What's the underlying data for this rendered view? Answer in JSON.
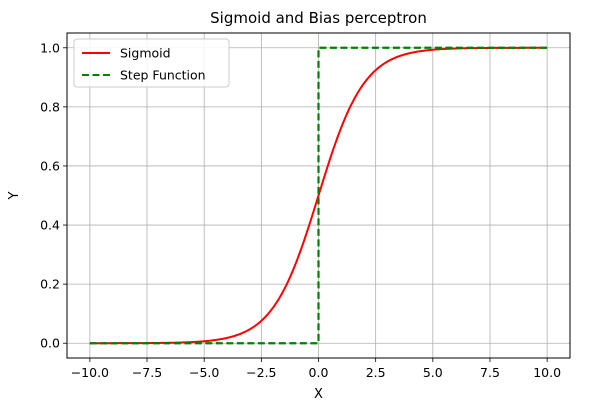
{
  "chart_data": {
    "type": "line",
    "title": "Sigmoid and Bias perceptron",
    "xlabel": "X",
    "ylabel": "Y",
    "xlim": [
      -11,
      11
    ],
    "ylim": [
      -0.05,
      1.05
    ],
    "xticks": [
      -10.0,
      -7.5,
      -5.0,
      -2.5,
      0.0,
      2.5,
      5.0,
      7.5,
      10.0
    ],
    "xtick_labels": [
      "−10.0",
      "−7.5",
      "−5.0",
      "−2.5",
      "0.0",
      "2.5",
      "5.0",
      "7.5",
      "10.0"
    ],
    "yticks": [
      0.0,
      0.2,
      0.4,
      0.6,
      0.8,
      1.0
    ],
    "ytick_labels": [
      "0.0",
      "0.2",
      "0.4",
      "0.6",
      "0.8",
      "1.0"
    ],
    "grid": true,
    "legend_position": "top-left",
    "series": [
      {
        "name": "Sigmoid",
        "function": "sigmoid",
        "style": "solid",
        "color": "#ff0000",
        "x_range": [
          -10,
          10
        ],
        "x": [
          -10,
          -8,
          -6,
          -5,
          -4,
          -3,
          -2,
          -1,
          0,
          1,
          2,
          3,
          4,
          5,
          6,
          8,
          10
        ],
        "y": [
          4.54e-05,
          0.000335,
          0.00247,
          0.00669,
          0.018,
          0.0474,
          0.119,
          0.269,
          0.5,
          0.731,
          0.881,
          0.953,
          0.982,
          0.993,
          0.998,
          0.9997,
          0.99995
        ]
      },
      {
        "name": "Step Function",
        "function": "step",
        "style": "dashed",
        "color": "#008000",
        "x": [
          -10,
          0,
          0,
          10
        ],
        "y": [
          0,
          0,
          1,
          1
        ]
      }
    ]
  }
}
